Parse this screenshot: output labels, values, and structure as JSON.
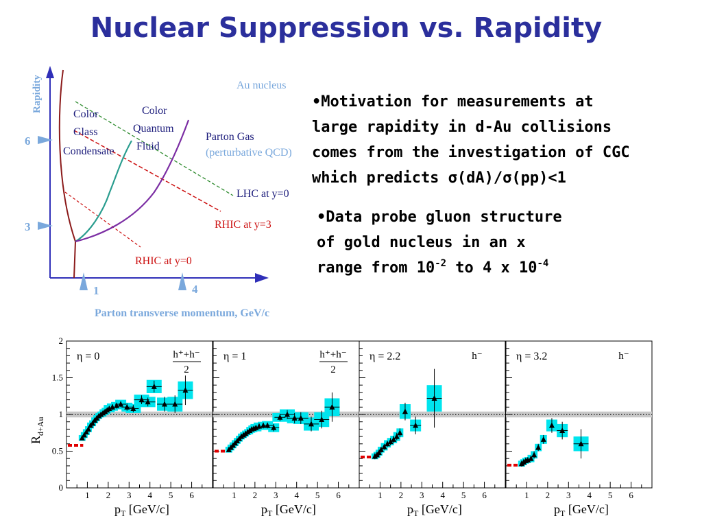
{
  "slide": {
    "title": "Nuclear Suppression vs. Rapidity",
    "bullet1": {
      "lines": [
        "•Motivation for measurements at",
        "large rapidity  in d-Au collisions",
        "comes from the investigation of CGC",
        "which predicts σ(dA)/σ(pp)<1"
      ]
    },
    "bullet2": {
      "line1": "•Data probe gluon structure",
      "line2": "of gold nucleus in an x",
      "line3_prefix": "range from 10",
      "exp1": "-2",
      "line3_mid": " to 4 x 10",
      "exp2": "-4"
    }
  },
  "diagram": {
    "y_axis_label": "Rapidity",
    "x_axis_label": "Parton transverse momentum, GeV/c",
    "y_ticks": [
      "6",
      "3"
    ],
    "x_ticks": [
      "1",
      "4"
    ],
    "regions": {
      "cgc": [
        "Color",
        "Glass",
        "Condensate"
      ],
      "cqf": [
        "Color",
        "Quantum",
        "Fluid"
      ],
      "au_nucleus": "Au nucleus",
      "parton_gas": [
        "Parton Gas",
        "(perturbative QCD)"
      ]
    },
    "lines": {
      "lhc": "LHC at y=0",
      "rhic3": "RHIC at y=3",
      "rhic0": "RHIC at y=0"
    },
    "colors": {
      "axis": "#2f2fb8",
      "label_blue": "#7aa8dc",
      "cgc_curve": "#8b1a1a",
      "cqf_curve": "#2a9d8f",
      "gas_curve": "#7b2da3",
      "lhc_line": "#2e8b2e",
      "rhic_line": "#cc1111",
      "text_dark": "#1a1a7a"
    }
  },
  "chart_data": [
    {
      "type": "scatter",
      "eta_label": "η = 0",
      "species_num": "h⁺+h⁻",
      "species_den": "2",
      "xlabel": "p",
      "xlabel_sub": "T",
      "xlabel_unit": " [GeV/c]",
      "ylabel": "R",
      "ylabel_sub": "d+Au",
      "ylim": [
        0,
        2
      ],
      "xlim": [
        0,
        7
      ],
      "x_ticks": [
        "1",
        "2",
        "3",
        "4",
        "5",
        "6"
      ],
      "y_ticks": [
        "0",
        "0.5",
        "1",
        "1.5",
        "2"
      ],
      "baseline_y": 0.58,
      "points": [
        {
          "x": 0.75,
          "y": 0.68,
          "err": 0.03,
          "sys": 0.04
        },
        {
          "x": 0.85,
          "y": 0.72,
          "err": 0.03,
          "sys": 0.04
        },
        {
          "x": 0.95,
          "y": 0.76,
          "err": 0.03,
          "sys": 0.04
        },
        {
          "x": 1.05,
          "y": 0.8,
          "err": 0.03,
          "sys": 0.04
        },
        {
          "x": 1.15,
          "y": 0.85,
          "err": 0.03,
          "sys": 0.04
        },
        {
          "x": 1.25,
          "y": 0.88,
          "err": 0.03,
          "sys": 0.04
        },
        {
          "x": 1.35,
          "y": 0.92,
          "err": 0.03,
          "sys": 0.04
        },
        {
          "x": 1.45,
          "y": 0.95,
          "err": 0.03,
          "sys": 0.04
        },
        {
          "x": 1.55,
          "y": 0.98,
          "err": 0.03,
          "sys": 0.04
        },
        {
          "x": 1.65,
          "y": 1.0,
          "err": 0.03,
          "sys": 0.04
        },
        {
          "x": 1.75,
          "y": 1.02,
          "err": 0.03,
          "sys": 0.05
        },
        {
          "x": 1.85,
          "y": 1.04,
          "err": 0.03,
          "sys": 0.05
        },
        {
          "x": 1.95,
          "y": 1.06,
          "err": 0.03,
          "sys": 0.05
        },
        {
          "x": 2.05,
          "y": 1.08,
          "err": 0.03,
          "sys": 0.05
        },
        {
          "x": 2.2,
          "y": 1.1,
          "err": 0.04,
          "sys": 0.05
        },
        {
          "x": 2.4,
          "y": 1.12,
          "err": 0.04,
          "sys": 0.05
        },
        {
          "x": 2.6,
          "y": 1.14,
          "err": 0.04,
          "sys": 0.06
        },
        {
          "x": 2.9,
          "y": 1.1,
          "err": 0.05,
          "sys": 0.06
        },
        {
          "x": 3.2,
          "y": 1.08,
          "err": 0.05,
          "sys": 0.06
        },
        {
          "x": 3.6,
          "y": 1.2,
          "err": 0.06,
          "sys": 0.07
        },
        {
          "x": 3.9,
          "y": 1.17,
          "err": 0.06,
          "sys": 0.07
        },
        {
          "x": 4.2,
          "y": 1.38,
          "err": 0.08,
          "sys": 0.09
        },
        {
          "x": 4.7,
          "y": 1.14,
          "err": 0.1,
          "sys": 0.09
        },
        {
          "x": 5.2,
          "y": 1.14,
          "err": 0.12,
          "sys": 0.1
        },
        {
          "x": 5.7,
          "y": 1.33,
          "err": 0.2,
          "sys": 0.12
        }
      ]
    },
    {
      "type": "scatter",
      "eta_label": "η = 1",
      "species_num": "h⁺+h⁻",
      "species_den": "2",
      "xlabel": "p",
      "xlabel_sub": "T",
      "xlabel_unit": " [GeV/c]",
      "ylim": [
        0,
        2
      ],
      "xlim": [
        0,
        7
      ],
      "x_ticks": [
        "1",
        "2",
        "3",
        "4",
        "5",
        "6"
      ],
      "baseline_y": 0.5,
      "points": [
        {
          "x": 0.75,
          "y": 0.52,
          "err": 0.03,
          "sys": 0.04
        },
        {
          "x": 0.85,
          "y": 0.55,
          "err": 0.03,
          "sys": 0.04
        },
        {
          "x": 0.95,
          "y": 0.58,
          "err": 0.03,
          "sys": 0.04
        },
        {
          "x": 1.05,
          "y": 0.61,
          "err": 0.03,
          "sys": 0.04
        },
        {
          "x": 1.15,
          "y": 0.64,
          "err": 0.03,
          "sys": 0.04
        },
        {
          "x": 1.25,
          "y": 0.67,
          "err": 0.03,
          "sys": 0.04
        },
        {
          "x": 1.35,
          "y": 0.7,
          "err": 0.03,
          "sys": 0.04
        },
        {
          "x": 1.45,
          "y": 0.72,
          "err": 0.03,
          "sys": 0.04
        },
        {
          "x": 1.55,
          "y": 0.74,
          "err": 0.03,
          "sys": 0.04
        },
        {
          "x": 1.65,
          "y": 0.76,
          "err": 0.03,
          "sys": 0.04
        },
        {
          "x": 1.75,
          "y": 0.78,
          "err": 0.03,
          "sys": 0.05
        },
        {
          "x": 1.85,
          "y": 0.8,
          "err": 0.03,
          "sys": 0.05
        },
        {
          "x": 1.95,
          "y": 0.81,
          "err": 0.03,
          "sys": 0.05
        },
        {
          "x": 2.05,
          "y": 0.82,
          "err": 0.03,
          "sys": 0.05
        },
        {
          "x": 2.2,
          "y": 0.84,
          "err": 0.04,
          "sys": 0.05
        },
        {
          "x": 2.4,
          "y": 0.85,
          "err": 0.04,
          "sys": 0.05
        },
        {
          "x": 2.6,
          "y": 0.85,
          "err": 0.04,
          "sys": 0.06
        },
        {
          "x": 2.9,
          "y": 0.82,
          "err": 0.05,
          "sys": 0.06
        },
        {
          "x": 3.2,
          "y": 0.96,
          "err": 0.05,
          "sys": 0.06
        },
        {
          "x": 3.55,
          "y": 1.0,
          "err": 0.06,
          "sys": 0.07
        },
        {
          "x": 3.9,
          "y": 0.95,
          "err": 0.07,
          "sys": 0.07
        },
        {
          "x": 4.2,
          "y": 0.95,
          "err": 0.08,
          "sys": 0.08
        },
        {
          "x": 4.7,
          "y": 0.87,
          "err": 0.1,
          "sys": 0.09
        },
        {
          "x": 5.2,
          "y": 0.93,
          "err": 0.12,
          "sys": 0.1
        },
        {
          "x": 5.7,
          "y": 1.1,
          "err": 0.2,
          "sys": 0.12
        }
      ]
    },
    {
      "type": "scatter",
      "eta_label": "η = 2.2",
      "species": "h⁻",
      "xlabel": "p",
      "xlabel_sub": "T",
      "xlabel_unit": " [GeV/c]",
      "ylim": [
        0,
        2
      ],
      "xlim": [
        0,
        7
      ],
      "x_ticks": [
        "1",
        "2",
        "3",
        "4",
        "5",
        "6"
      ],
      "baseline_y": 0.42,
      "points": [
        {
          "x": 0.75,
          "y": 0.43,
          "err": 0.04,
          "sys": 0.04
        },
        {
          "x": 0.85,
          "y": 0.45,
          "err": 0.04,
          "sys": 0.04
        },
        {
          "x": 0.95,
          "y": 0.48,
          "err": 0.04,
          "sys": 0.04
        },
        {
          "x": 1.05,
          "y": 0.52,
          "err": 0.04,
          "sys": 0.04
        },
        {
          "x": 1.2,
          "y": 0.56,
          "err": 0.04,
          "sys": 0.05
        },
        {
          "x": 1.35,
          "y": 0.6,
          "err": 0.04,
          "sys": 0.05
        },
        {
          "x": 1.5,
          "y": 0.63,
          "err": 0.05,
          "sys": 0.05
        },
        {
          "x": 1.65,
          "y": 0.66,
          "err": 0.05,
          "sys": 0.05
        },
        {
          "x": 1.8,
          "y": 0.7,
          "err": 0.05,
          "sys": 0.06
        },
        {
          "x": 1.95,
          "y": 0.75,
          "err": 0.06,
          "sys": 0.06
        },
        {
          "x": 2.2,
          "y": 1.04,
          "err": 0.12,
          "sys": 0.1
        },
        {
          "x": 2.7,
          "y": 0.85,
          "err": 0.12,
          "sys": 0.08
        },
        {
          "x": 3.6,
          "y": 1.22,
          "err": 0.4,
          "sys": 0.18
        }
      ]
    },
    {
      "type": "scatter",
      "eta_label": "η = 3.2",
      "species": "h⁻",
      "xlabel": "p",
      "xlabel_sub": "T",
      "xlabel_unit": " [GeV/c]",
      "ylim": [
        0,
        2
      ],
      "xlim": [
        0,
        7
      ],
      "x_ticks": [
        "1",
        "2",
        "3",
        "4",
        "5",
        "6"
      ],
      "baseline_y": 0.31,
      "points": [
        {
          "x": 0.75,
          "y": 0.33,
          "err": 0.04,
          "sys": 0.04
        },
        {
          "x": 0.85,
          "y": 0.35,
          "err": 0.04,
          "sys": 0.04
        },
        {
          "x": 0.95,
          "y": 0.37,
          "err": 0.04,
          "sys": 0.04
        },
        {
          "x": 1.05,
          "y": 0.38,
          "err": 0.04,
          "sys": 0.04
        },
        {
          "x": 1.2,
          "y": 0.4,
          "err": 0.04,
          "sys": 0.05
        },
        {
          "x": 1.35,
          "y": 0.45,
          "err": 0.05,
          "sys": 0.05
        },
        {
          "x": 1.55,
          "y": 0.55,
          "err": 0.05,
          "sys": 0.05
        },
        {
          "x": 1.8,
          "y": 0.66,
          "err": 0.06,
          "sys": 0.06
        },
        {
          "x": 2.2,
          "y": 0.85,
          "err": 0.1,
          "sys": 0.08
        },
        {
          "x": 2.7,
          "y": 0.78,
          "err": 0.12,
          "sys": 0.09
        },
        {
          "x": 3.6,
          "y": 0.6,
          "err": 0.2,
          "sys": 0.1
        }
      ]
    }
  ]
}
